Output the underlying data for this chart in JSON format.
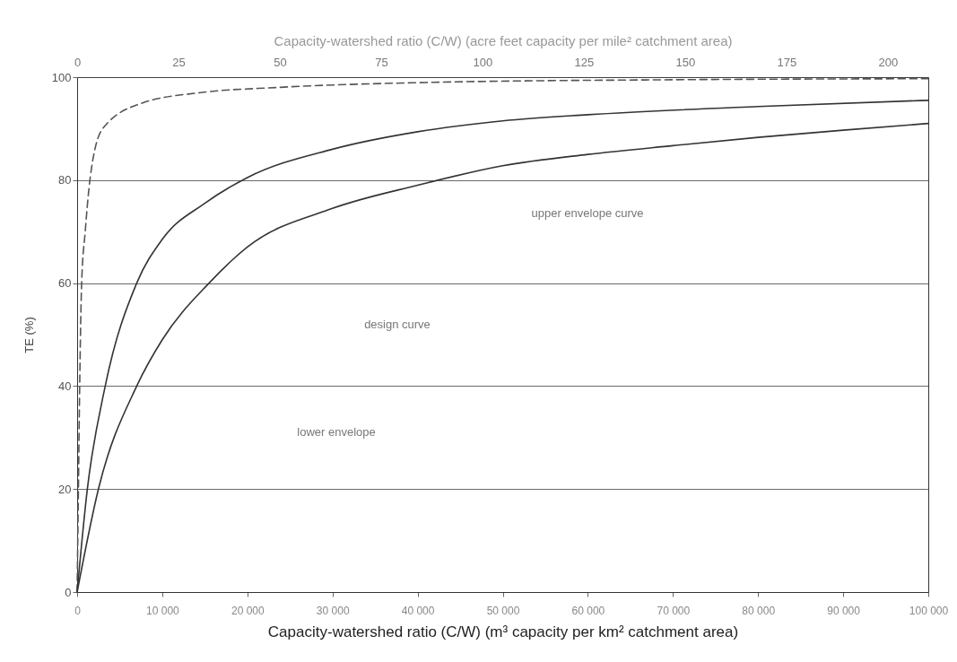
{
  "chart_data": {
    "type": "line",
    "xlabel": "Capacity-watershed ratio (C/W) (m³ capacity per km² catchment area)",
    "ylabel": "TE (%)",
    "x2label": "Capacity-watershed ratio (C/W) (acre feet capacity per mile² catchment area)",
    "xlim": [
      0,
      100000
    ],
    "xticks": [
      {
        "value": 0,
        "label": "0"
      },
      {
        "value": 10000,
        "label": "10 000"
      },
      {
        "value": 20000,
        "label": "20 000"
      },
      {
        "value": 30000,
        "label": "30 000"
      },
      {
        "value": 40000,
        "label": "40 000"
      },
      {
        "value": 50000,
        "label": "50 000"
      },
      {
        "value": 60000,
        "label": "60 000"
      },
      {
        "value": 70000,
        "label": "70 000"
      },
      {
        "value": 80000,
        "label": "80 000"
      },
      {
        "value": 90000,
        "label": "90 000"
      },
      {
        "value": 100000,
        "label": "100 000"
      }
    ],
    "x2lim": [
      0,
      210
    ],
    "x2ticks": [
      0,
      25,
      50,
      75,
      100,
      125,
      150,
      175,
      200
    ],
    "ylim": [
      0,
      100
    ],
    "yticks": [
      0,
      20,
      40,
      60,
      80,
      100
    ],
    "grid": "y",
    "series": [
      {
        "color": "#555555",
        "line_style": "dashed",
        "x": [
          0,
          150,
          300,
          530,
          950,
          1500,
          3000,
          7700,
          14500,
          23600,
          42000,
          70000,
          100000
        ],
        "values": [
          0,
          20,
          40,
          60,
          70,
          80,
          90,
          95,
          97,
          98,
          99,
          99.5,
          99.7
        ]
      },
      {
        "color": "#333333",
        "line_style": "solid",
        "x": [
          0,
          1200,
          3300,
          7000,
          10000,
          15000,
          20000,
          30000,
          40000,
          50000,
          60000,
          80000,
          100000
        ],
        "values": [
          0,
          20,
          40,
          60,
          68.5,
          75.5,
          80.5,
          86,
          89.4,
          91.5,
          92.7,
          94.3,
          95.5
        ]
      },
      {
        "color": "#333333",
        "line_style": "solid",
        "x": [
          0,
          2500,
          7000,
          10000,
          15500,
          20000,
          30000,
          40000,
          50000,
          60000,
          70000,
          80000,
          90000,
          100000
        ],
        "values": [
          0,
          20,
          40,
          49,
          60,
          67,
          74.5,
          79,
          82.8,
          85,
          86.7,
          88.3,
          89.7,
          91
        ]
      }
    ],
    "annotations": [
      "upper envelope curve",
      "design curve",
      "lower envelope"
    ]
  }
}
